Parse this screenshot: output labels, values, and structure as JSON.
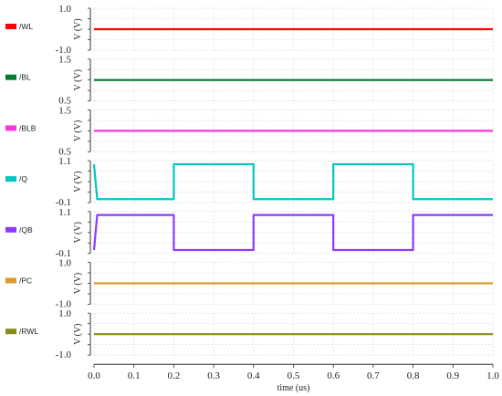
{
  "chart_data": {
    "type": "line",
    "x_axis": {
      "label": "time (us)",
      "range": [
        0.0,
        1.0
      ],
      "ticks": [
        "0.0",
        "0.1",
        "0.2",
        "0.3",
        "0.4",
        "0.5",
        "0.6",
        "0.7",
        "0.8",
        "0.9",
        "1.0"
      ]
    },
    "grid": true,
    "legend_placement": "left",
    "panels": [
      {
        "signal": "/WL",
        "color": "#ff0000",
        "ylabel": "V (V)",
        "ylim": [
          -1.0,
          1.0
        ],
        "y_ticks": [
          "1.0",
          "-1.0"
        ],
        "x": [
          0.0,
          1.0
        ],
        "y": [
          0.0,
          0.0
        ]
      },
      {
        "signal": "/BL",
        "color": "#007a33",
        "ylabel": "V (V)",
        "ylim": [
          0.5,
          1.5
        ],
        "y_ticks": [
          "1.5",
          "0.5"
        ],
        "x": [
          0.0,
          1.0
        ],
        "y": [
          1.0,
          1.0
        ]
      },
      {
        "signal": "/BLB",
        "color": "#ff33dd",
        "ylabel": "V (V)",
        "ylim": [
          0.5,
          1.5
        ],
        "y_ticks": [
          "1.5",
          "0.5"
        ],
        "x": [
          0.0,
          1.0
        ],
        "y": [
          1.0,
          1.0
        ]
      },
      {
        "signal": "/Q",
        "color": "#00c8c0",
        "ylabel": "V (V)",
        "ylim": [
          -0.1,
          1.1
        ],
        "y_ticks": [
          "1.1",
          "-0.1"
        ],
        "x": [
          0.0,
          0.008,
          0.2,
          0.2,
          0.4,
          0.4,
          0.6,
          0.6,
          0.8,
          0.8,
          1.0
        ],
        "y": [
          1.0,
          0.0,
          0.0,
          1.0,
          1.0,
          0.0,
          0.0,
          1.0,
          1.0,
          0.0,
          0.0
        ]
      },
      {
        "signal": "/QB",
        "color": "#8a3cff",
        "ylabel": "V (V)",
        "ylim": [
          -0.1,
          1.1
        ],
        "y_ticks": [
          "1.1",
          "-0.1"
        ],
        "x": [
          0.0,
          0.008,
          0.2,
          0.2,
          0.4,
          0.4,
          0.6,
          0.6,
          0.8,
          0.8,
          1.0
        ],
        "y": [
          0.0,
          1.0,
          1.0,
          0.0,
          0.0,
          1.0,
          1.0,
          0.0,
          0.0,
          1.0,
          1.0
        ]
      },
      {
        "signal": "/PC",
        "color": "#d99a2b",
        "ylabel": "V (V)",
        "ylim": [
          -1.0,
          1.0
        ],
        "y_ticks": [
          "1.0",
          "-1.0"
        ],
        "x": [
          0.0,
          1.0
        ],
        "y": [
          0.0,
          0.0
        ]
      },
      {
        "signal": "/RWL",
        "color": "#8a8a1a",
        "ylabel": "V (V)",
        "ylim": [
          -1.0,
          1.0
        ],
        "y_ticks": [
          "1.0",
          "-1.0"
        ],
        "x": [
          0.0,
          1.0
        ],
        "y": [
          0.0,
          0.0
        ]
      }
    ]
  }
}
